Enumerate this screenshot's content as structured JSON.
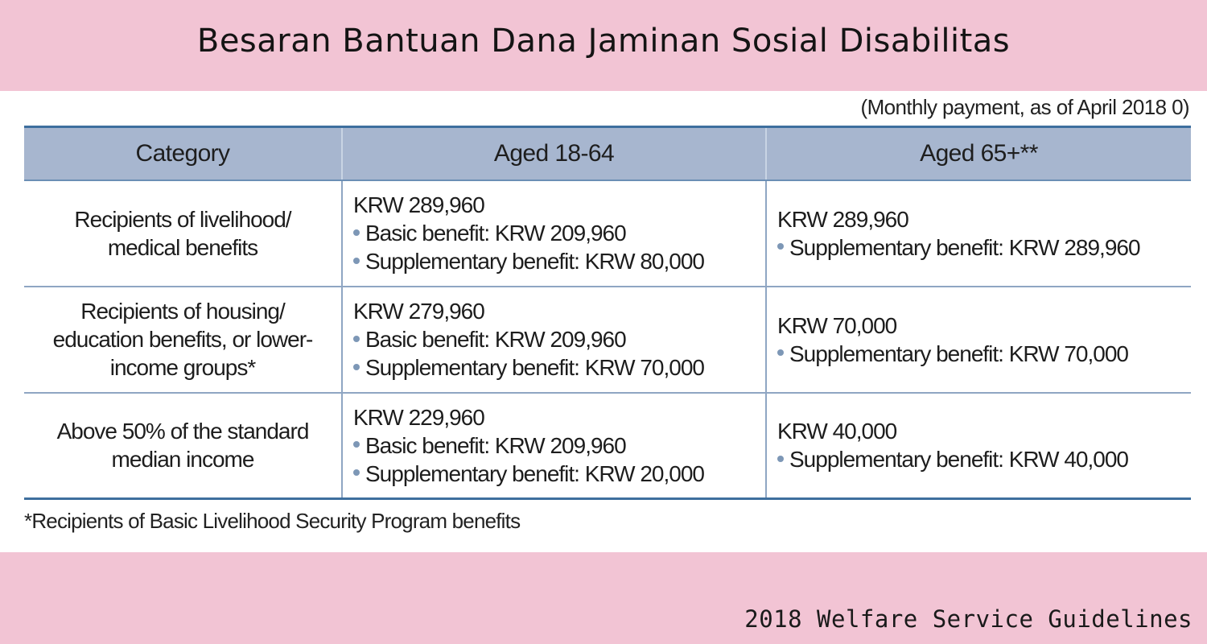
{
  "title": "Besaran Bantuan Dana Jaminan Sosial Disabilitas",
  "note": "(Monthly payment, as of April 2018 0)",
  "table": {
    "headers": [
      "Category",
      "Aged 18-64",
      "Aged 65+**"
    ],
    "rows": [
      {
        "category": [
          "Recipients of livelihood/",
          "medical benefits"
        ],
        "aged_18_64": {
          "total": "KRW 289,960",
          "basic": "Basic benefit: KRW 209,960",
          "supplementary": "Supplementary benefit: KRW 80,000"
        },
        "aged_65_plus": {
          "total": "KRW 289,960",
          "supplementary": "Supplementary benefit: KRW 289,960"
        }
      },
      {
        "category": [
          "Recipients of housing/",
          "education benefits, or lower-",
          "income groups*"
        ],
        "aged_18_64": {
          "total": "KRW 279,960",
          "basic": "Basic benefit: KRW 209,960",
          "supplementary": "Supplementary benefit: KRW 70,000"
        },
        "aged_65_plus": {
          "total": "KRW 70,000",
          "supplementary": "Supplementary benefit: KRW 70,000"
        }
      },
      {
        "category": [
          "Above 50% of the standard",
          "median income"
        ],
        "aged_18_64": {
          "total": "KRW 229,960",
          "basic": "Basic benefit: KRW 209,960",
          "supplementary": "Supplementary benefit: KRW 20,000"
        },
        "aged_65_plus": {
          "total": "KRW 40,000",
          "supplementary": "Supplementary benefit: KRW 40,000"
        }
      }
    ]
  },
  "footnote": "*Recipients of Basic Livelihood Security Program benefits",
  "source": "2018 Welfare Service Guidelines",
  "colors": {
    "band": "#f2c4d4",
    "header_fill": "#a7b6cf",
    "rule": "#3e6f9e",
    "bullet": "#7d97b6"
  }
}
